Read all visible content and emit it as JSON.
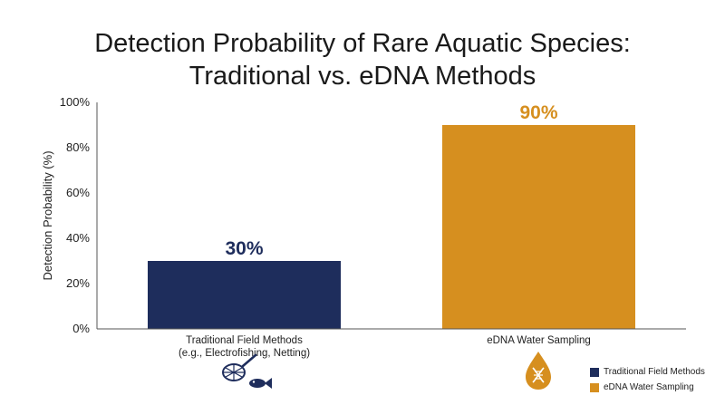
{
  "chart_data": {
    "type": "bar",
    "title_lines": [
      "Detection Probability of Rare Aquatic Species:",
      "Traditional vs. eDNA Methods"
    ],
    "ylabel": "Detection Probability (%)",
    "xlabel": "",
    "ylim": [
      0,
      100
    ],
    "yticks": [
      0,
      20,
      40,
      60,
      80,
      100
    ],
    "ytick_suffix": "%",
    "grid": false,
    "legend_position": "bottom-right",
    "categories": [
      {
        "lines": [
          "Traditional Field Methods",
          "(e.g., Electrofishing, Netting)"
        ]
      },
      {
        "lines": [
          "eDNA Water Sampling"
        ]
      }
    ],
    "values": [
      30,
      90
    ],
    "data_labels": [
      "30%",
      "90%"
    ],
    "colors": [
      "#1e2d5c",
      "#d68f1f"
    ],
    "icons": [
      "net-and-fish-icon",
      "water-drop-dna-icon"
    ],
    "legend": [
      {
        "label": "Traditional Field Methods",
        "color": "#1e2d5c"
      },
      {
        "label": "eDNA Water Sampling",
        "color": "#d68f1f"
      }
    ]
  }
}
